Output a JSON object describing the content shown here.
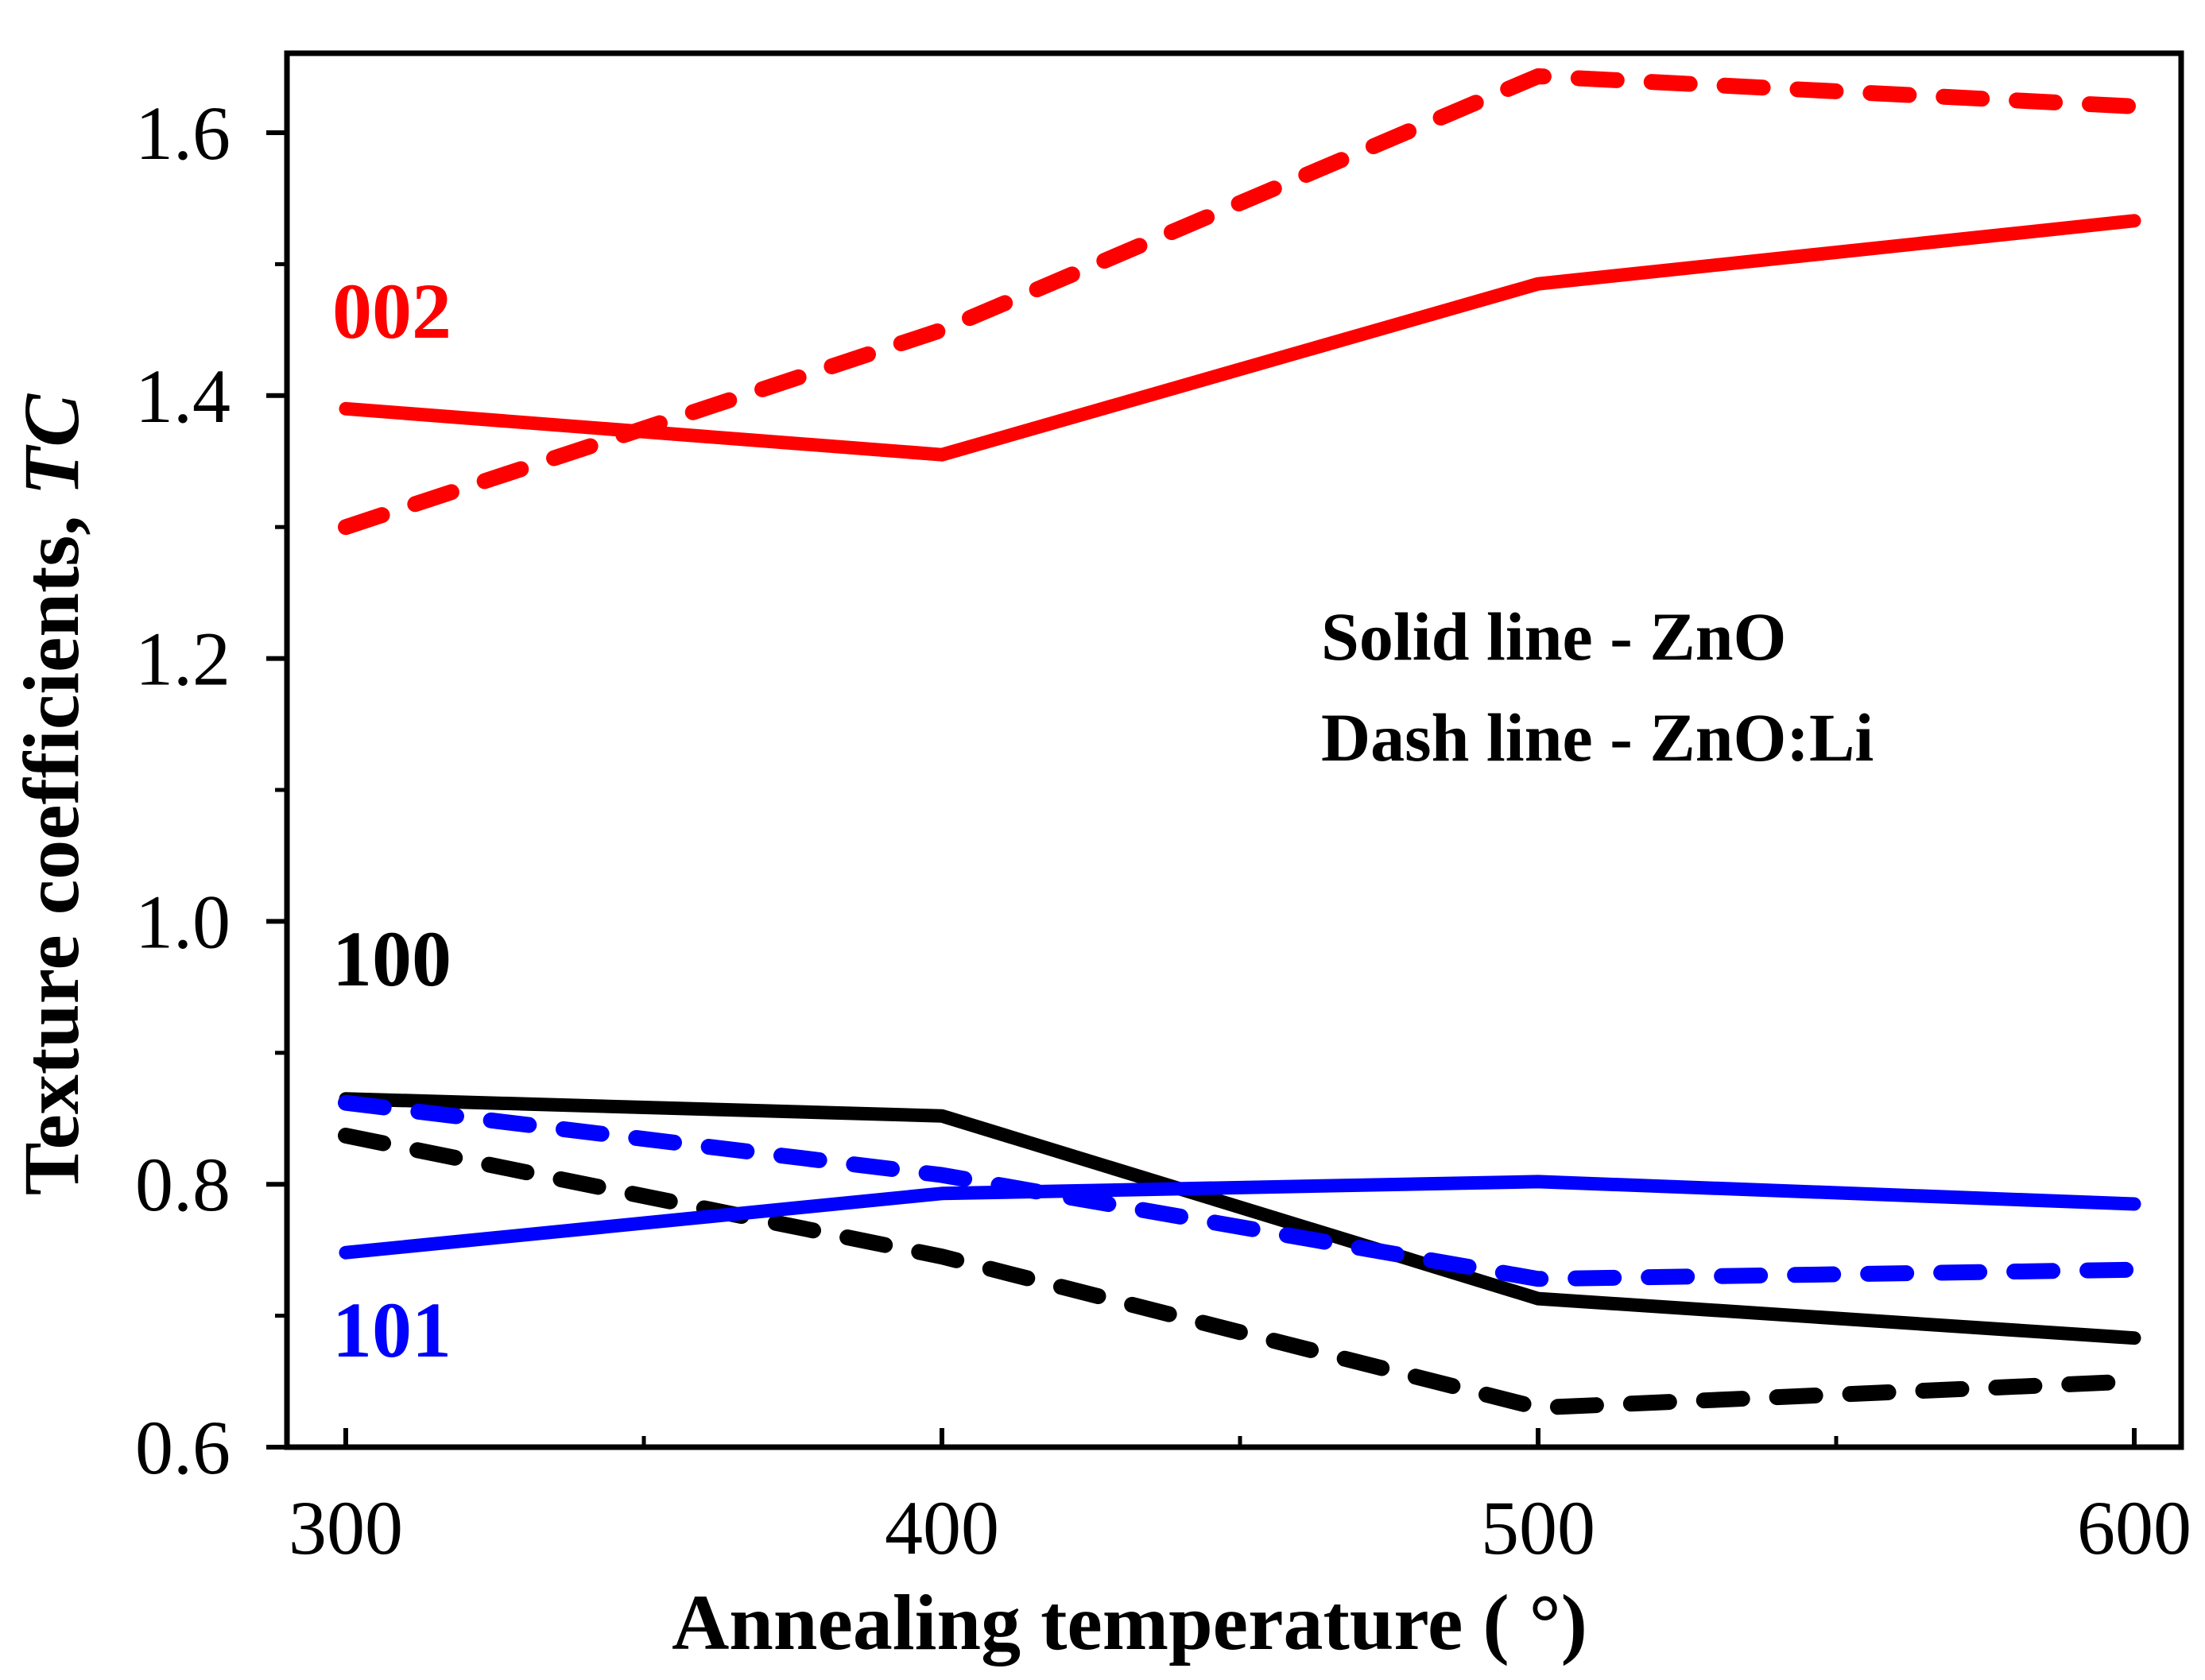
{
  "chart_data": {
    "type": "line",
    "title": "",
    "xlabel": "Annealing temperature ( °)",
    "ylabel": {
      "main": "Texture coefficients, ",
      "italic": "TC"
    },
    "xlim": [
      290,
      600
    ],
    "ylim": [
      0.6,
      1.66
    ],
    "x_ticks": [
      300,
      400,
      500,
      600
    ],
    "y_ticks": [
      0.6,
      0.8,
      1.0,
      1.2,
      1.4,
      1.6
    ],
    "x_tick_labels": [
      "300",
      "400",
      "500",
      "600"
    ],
    "y_tick_labels": [
      "0.6",
      "0.8",
      "1.0",
      "1.2",
      "1.4",
      "1.6"
    ],
    "grid": false,
    "x": [
      300,
      400,
      500,
      600
    ],
    "series": [
      {
        "peak": "002",
        "material": "ZnO",
        "style": "solid",
        "color": "#ff0000",
        "values": [
          1.39,
          1.355,
          1.485,
          1.533
        ]
      },
      {
        "peak": "002",
        "material": "ZnO:Li",
        "style": "dash",
        "color": "#ff0000",
        "values": [
          1.3,
          1.45,
          1.643,
          1.62
        ]
      },
      {
        "peak": "100",
        "material": "ZnO",
        "style": "solid",
        "color": "#000000",
        "values": [
          0.865,
          0.852,
          0.713,
          0.683
        ]
      },
      {
        "peak": "100",
        "material": "ZnO:Li",
        "style": "dash",
        "color": "#000000",
        "values": [
          0.837,
          0.745,
          0.63,
          0.65
        ]
      },
      {
        "peak": "101",
        "material": "ZnO",
        "style": "solid",
        "color": "#0000ff",
        "values": [
          0.748,
          0.793,
          0.802,
          0.785
        ]
      },
      {
        "peak": "101",
        "material": "ZnO:Li",
        "style": "dash",
        "color": "#0000ff",
        "values": [
          0.862,
          0.807,
          0.728,
          0.735
        ]
      }
    ],
    "series_labels": [
      {
        "text": "002",
        "color": "#ff0000"
      },
      {
        "text": "100",
        "color": "#000000"
      },
      {
        "text": "101",
        "color": "#0000ff"
      }
    ],
    "legend": {
      "placement": "center-right",
      "lines": [
        "Solid line - ZnO",
        "Dash line - ZnO:Li"
      ]
    }
  }
}
